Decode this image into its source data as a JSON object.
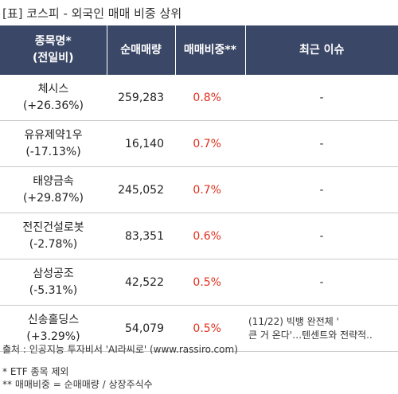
{
  "title": "[표] 코스피 - 외국인 매매 비중 상위",
  "headers": {
    "name_line1": "종목명*",
    "name_line2": "(전일비)",
    "volume": "순매매량",
    "ratio": "매매비중**",
    "issue": "최근 이슈"
  },
  "rows": [
    {
      "name": "체시스",
      "change": "(+26.36%)",
      "volume": "259,283",
      "ratio": "0.8%",
      "issue": "-"
    },
    {
      "name": "유유제약1우",
      "change": "(-17.13%)",
      "volume": "16,140",
      "ratio": "0.7%",
      "issue": "-"
    },
    {
      "name": "태양금속",
      "change": "(+29.87%)",
      "volume": "245,052",
      "ratio": "0.7%",
      "issue": "-"
    },
    {
      "name": "전진건설로봇",
      "change": "(-2.78%)",
      "volume": "83,351",
      "ratio": "0.6%",
      "issue": "-"
    },
    {
      "name": "삼성공조",
      "change": "(-5.31%)",
      "volume": "42,522",
      "ratio": "0.5%",
      "issue": "-"
    },
    {
      "name": "신송홀딩스",
      "change": "(+3.29%)",
      "volume": "54,079",
      "ratio": "0.5%",
      "issue_line1": "(11/22) 빅뱅 완전체 '",
      "issue_line2": "큰 거 온다'…텐센트와 전략적.."
    }
  ],
  "footer": {
    "source": "출처 : 인공지능 투자비서 'AI라씨로' (www.rassiro.com)",
    "note1": "* ETF 종목 제외",
    "note2": "** 매매비중 = 순매매량 / 상장주식수"
  }
}
